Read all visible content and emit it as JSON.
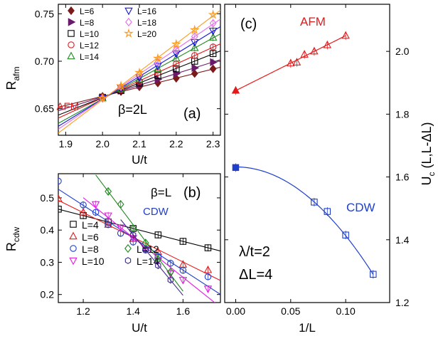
{
  "colors": {
    "L4": "#000000",
    "L6": "#e31a1c",
    "L8": "#1f3fcc",
    "L10": "#e01ee0",
    "L12": "#1e8a1e",
    "L14": "#3a2a8a",
    "L16": "#1414e0",
    "L18": "#e86be8",
    "L20": "#ff9a1a",
    "L6a": "#7a1a1a",
    "L8a": "#6a1a6a",
    "AFM": "#e31a1c",
    "CDW": "#1f3fcc",
    "axis": "#000000"
  },
  "chart_data": [
    {
      "panel": "a",
      "type": "line",
      "panel_label": "(a)",
      "xlabel": "U/t",
      "ylabel_main": "R",
      "ylabel_sub": "afm",
      "xlim": [
        1.88,
        2.32
      ],
      "ylim": [
        0.622,
        0.76
      ],
      "xticks": [
        "1.9",
        "2.0",
        "2.1",
        "2.2",
        "2.3"
      ],
      "yticks": [
        "0.65",
        "0.70",
        "0.75"
      ],
      "annotations": [
        {
          "text": "AFM",
          "color": "#e31a1c",
          "x": 1.91,
          "y": 0.677
        },
        {
          "text": "β=2L",
          "color": "#000000",
          "x": 2.015,
          "y": 0.645
        },
        {
          "text": "(a)",
          "color": "#000000",
          "x": 2.2,
          "y": 0.642
        }
      ],
      "legend": [
        {
          "label": "L=6",
          "marker": "diamond-filled",
          "color": "#7a1a1a"
        },
        {
          "label": "L=8",
          "marker": "tri-right-filled",
          "color": "#6a1a6a"
        },
        {
          "label": "L=10",
          "marker": "square-open",
          "color": "#000000"
        },
        {
          "label": "L=12",
          "marker": "circle-open",
          "color": "#e31a1c"
        },
        {
          "label": "L=14",
          "marker": "triangle-up-open",
          "color": "#1e8a1e"
        },
        {
          "label": "L=16",
          "marker": "triangle-down-open",
          "color": "#1414e0"
        },
        {
          "label": "L=18",
          "marker": "diamond-open",
          "color": "#e86be8"
        },
        {
          "label": "L=20",
          "marker": "star-open",
          "color": "#ff9a1a"
        }
      ],
      "x": [
        2.0,
        2.05,
        2.1,
        2.15,
        2.2,
        2.25,
        2.3
      ],
      "series": [
        {
          "name": "L=6",
          "marker": "diamond-filled",
          "color": "#7a1a1a",
          "values": [
            0.663,
            0.668,
            0.673,
            0.677,
            0.682,
            0.687,
            0.692
          ]
        },
        {
          "name": "L=8",
          "marker": "tri-right-filled",
          "color": "#6a1a6a",
          "values": [
            0.662,
            0.669,
            0.675,
            0.681,
            0.687,
            0.693,
            0.699
          ]
        },
        {
          "name": "L=10",
          "marker": "square-open",
          "color": "#000000",
          "values": [
            0.662,
            0.669,
            0.677,
            0.685,
            0.692,
            0.7,
            0.708
          ]
        },
        {
          "name": "L=12",
          "marker": "circle-open",
          "color": "#e31a1c",
          "values": [
            0.662,
            0.67,
            0.679,
            0.688,
            0.697,
            0.706,
            0.715
          ]
        },
        {
          "name": "L=14",
          "marker": "triangle-up-open",
          "color": "#1e8a1e",
          "values": [
            0.661,
            0.671,
            0.681,
            0.692,
            0.703,
            0.714,
            0.725
          ]
        },
        {
          "name": "L=16",
          "marker": "triangle-down-open",
          "color": "#1414e0",
          "values": [
            0.661,
            0.672,
            0.683,
            0.695,
            0.708,
            0.72,
            0.732
          ]
        },
        {
          "name": "L=18",
          "marker": "diamond-open",
          "color": "#e86be8",
          "values": [
            0.661,
            0.673,
            0.686,
            0.699,
            0.712,
            0.726,
            0.74
          ]
        },
        {
          "name": "L=20",
          "marker": "star-open",
          "color": "#ff9a1a",
          "values": [
            0.661,
            0.674,
            0.688,
            0.703,
            0.718,
            0.733,
            0.749
          ]
        }
      ]
    },
    {
      "panel": "b",
      "type": "line",
      "panel_label": "(b)",
      "xlabel": "U/t",
      "ylabel_main": "R",
      "ylabel_sub": "cdw",
      "xlim": [
        1.1,
        1.75
      ],
      "ylim": [
        0.175,
        0.575
      ],
      "xticks": [
        "1.2",
        "1.4",
        "1.6"
      ],
      "yticks": [
        "0.2",
        "0.3",
        "0.4",
        "0.5"
      ],
      "annotations": [
        {
          "text": "β=L",
          "color": "#000000",
          "x": 1.52,
          "y": 0.54
        },
        {
          "text": "CDW",
          "color": "#1f3fcc",
          "x": 1.52,
          "y": 0.48
        },
        {
          "text": "(b)",
          "color": "#000000",
          "x": 1.645,
          "y": 0.52
        }
      ],
      "legend": [
        {
          "label": "L=4",
          "marker": "square-open",
          "color": "#000000"
        },
        {
          "label": "L=6",
          "marker": "triangle-up-open",
          "color": "#e31a1c"
        },
        {
          "label": "L=8",
          "marker": "circle-open",
          "color": "#1f3fcc"
        },
        {
          "label": "L=10",
          "marker": "triangle-down-open",
          "color": "#e01ee0"
        },
        {
          "label": "L=12",
          "marker": "diamond-open",
          "color": "#1e8a1e"
        },
        {
          "label": "L=14",
          "marker": "hexagon-open",
          "color": "#3a2a8a"
        }
      ],
      "series": [
        {
          "name": "L=4",
          "marker": "square-open",
          "color": "#000000",
          "x": [
            1.1,
            1.2,
            1.3,
            1.4,
            1.5,
            1.6,
            1.7
          ],
          "values": [
            0.465,
            0.445,
            0.425,
            0.405,
            0.385,
            0.365,
            0.345
          ]
        },
        {
          "name": "L=6",
          "marker": "triangle-up-open",
          "color": "#e31a1c",
          "x": [
            1.1,
            1.2,
            1.3,
            1.4,
            1.5,
            1.6,
            1.7
          ],
          "values": [
            0.497,
            0.455,
            0.417,
            0.373,
            0.332,
            0.293,
            0.276
          ]
        },
        {
          "name": "L=8",
          "marker": "circle-open",
          "color": "#1f3fcc",
          "x": [
            1.1,
            1.2,
            1.25,
            1.3,
            1.35,
            1.4,
            1.45,
            1.5,
            1.55,
            1.6,
            1.7
          ],
          "values": [
            0.552,
            0.478,
            0.455,
            0.417,
            0.39,
            0.363,
            0.338,
            0.318,
            0.297,
            0.275,
            0.255
          ]
        },
        {
          "name": "L=10",
          "marker": "triangle-down-open",
          "color": "#e01ee0",
          "x": [
            1.25,
            1.3,
            1.35,
            1.4,
            1.45,
            1.5,
            1.55,
            1.6,
            1.7
          ],
          "values": [
            0.48,
            0.445,
            0.408,
            0.375,
            0.342,
            0.305,
            0.265,
            0.245,
            0.218
          ]
        },
        {
          "name": "L=12",
          "marker": "diamond-open",
          "color": "#1e8a1e",
          "x": [
            1.3,
            1.35,
            1.4,
            1.45,
            1.5,
            1.55
          ],
          "values": [
            0.52,
            0.48,
            0.405,
            0.36,
            0.31,
            0.27
          ]
        },
        {
          "name": "L=14",
          "marker": "hexagon-open",
          "color": "#3a2a8a",
          "x": [
            1.4,
            1.45,
            1.5,
            1.55
          ],
          "values": [
            0.385,
            0.34,
            0.29,
            0.245
          ]
        }
      ]
    },
    {
      "panel": "c",
      "type": "line",
      "panel_label": "(c)",
      "xlabel": "1/L",
      "ylabel": "U_c (L,L-ΔL)",
      "ylabel_main": "U",
      "ylabel_sub": "c",
      "ylabel_rest": " (L,L-ΔL)",
      "xlim": [
        -0.01,
        0.14
      ],
      "ylim": [
        1.2,
        2.15
      ],
      "xticks": [
        "0.00",
        "0.05",
        "0.10"
      ],
      "yticks": [
        "1.2",
        "1.4",
        "1.6",
        "1.8",
        "2.0"
      ],
      "annotations": [
        {
          "text": "AFM",
          "color": "#e31a1c",
          "x": 0.065,
          "y": 2.09
        },
        {
          "text": "CDW",
          "color": "#1f3fcc",
          "x": 0.093,
          "y": 1.49
        },
        {
          "text": "λ/t=2",
          "color": "#000000",
          "x": 0.01,
          "y": 1.34
        },
        {
          "text": "ΔL=4",
          "color": "#000000",
          "x": 0.01,
          "y": 1.27
        },
        {
          "text": "(c)",
          "color": "#000000",
          "x": 0.01,
          "y": 2.09
        }
      ],
      "series": [
        {
          "name": "AFM",
          "marker": "triangle-up-open",
          "color": "#e31a1c",
          "x": [
            0.05,
            0.0556,
            0.0625,
            0.0714,
            0.0833,
            0.1
          ],
          "values": [
            1.962,
            1.965,
            1.99,
            2.0,
            2.02,
            2.05
          ]
        },
        {
          "name": "AFM extrapolated",
          "marker": "triangle-up-filled",
          "color": "#e31a1c",
          "x": [
            0.0
          ],
          "values": [
            1.875
          ]
        },
        {
          "name": "CDW",
          "marker": "square-open",
          "color": "#1f3fcc",
          "x": [
            0.0714,
            0.0833,
            0.1,
            0.125
          ],
          "values": [
            1.52,
            1.49,
            1.415,
            1.29
          ]
        },
        {
          "name": "CDW extrapolated",
          "marker": "square-filled",
          "color": "#1f3fcc",
          "x": [
            0.0
          ],
          "values": [
            1.63
          ]
        }
      ],
      "fits": [
        {
          "name": "AFM fit",
          "color": "#e31a1c",
          "form": "linear",
          "x_from": 0.0,
          "x_to": 0.1,
          "a": 1.875,
          "b": 1.75
        },
        {
          "name": "CDW fit",
          "color": "#1f3fcc",
          "form": "quadratic",
          "x_from": 0.0,
          "x_to": 0.125,
          "a": 1.632,
          "b": -21.9
        }
      ]
    }
  ]
}
